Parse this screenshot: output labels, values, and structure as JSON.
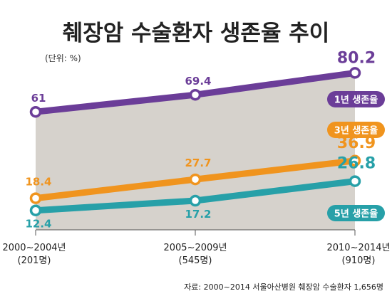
{
  "chart_data": {
    "type": "line",
    "title": "췌장암 수술환자 생존율 추이",
    "unit": "(단위: %)",
    "categories": [
      "2000~2004년",
      "2005~2009년",
      "2010~2014년"
    ],
    "category_counts": [
      "(201명)",
      "(545명)",
      "(910명)"
    ],
    "ylim": [
      0,
      100
    ],
    "series": [
      {
        "name": "1년 생존율",
        "color": "#6b3d98",
        "values": [
          61,
          69.4,
          80.2
        ],
        "labels": [
          "61",
          "69.4",
          "80.2"
        ]
      },
      {
        "name": "3년 생존율",
        "color": "#f0941e",
        "values": [
          18.4,
          27.7,
          36.9
        ],
        "labels": [
          "18.4",
          "27.7",
          "36.9"
        ]
      },
      {
        "name": "5년 생존율",
        "color": "#27a0a8",
        "values": [
          12.4,
          17.2,
          26.8
        ],
        "labels": [
          "12.4",
          "17.2",
          "26.8"
        ]
      }
    ],
    "area_fill": "#d6d2cc",
    "grid": false,
    "legend": "right-side badges",
    "source": "자료: 2000~2014  서울아산병원 췌장암 수술환자  1,656명"
  }
}
